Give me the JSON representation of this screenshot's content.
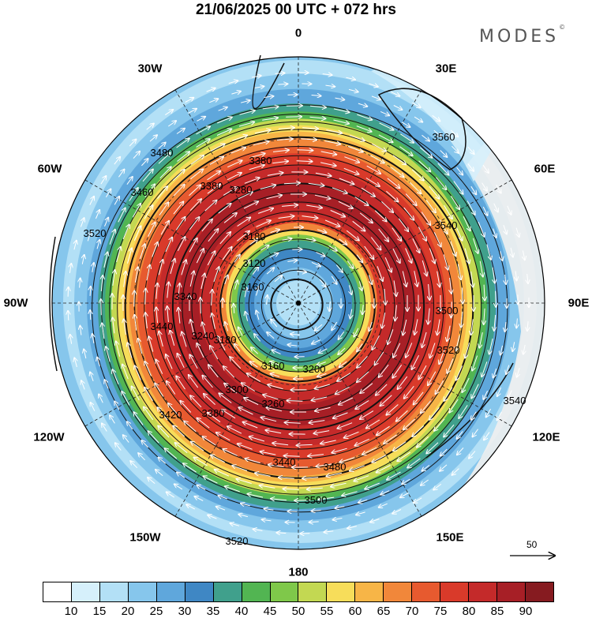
{
  "title": "21/06/2025  00 UTC  + 072 hrs",
  "brand": "MODES",
  "brand_mark": "©",
  "longitudes": {
    "top": "0",
    "top_left": "30W",
    "top_right": "30E",
    "upper_left": "60W",
    "upper_right": "60E",
    "left": "90W",
    "right": "90E",
    "lower_left": "120W",
    "lower_right": "120E",
    "bottom_left": "150W",
    "bottom_right": "150E",
    "bottom": "180"
  },
  "wind_scale": {
    "label": "50",
    "units": "reference arrow"
  },
  "colorbar": {
    "colors": [
      "#ffffff",
      "#d6f0fb",
      "#b3e0f6",
      "#86c6ec",
      "#5fa7dc",
      "#3f87c4",
      "#40a08c",
      "#52b552",
      "#7fc84a",
      "#c3d852",
      "#f7dd5a",
      "#f7b547",
      "#f1873a",
      "#e75a2f",
      "#d93a2a",
      "#c42a2a",
      "#a71f26",
      "#861b20"
    ],
    "ticks": [
      "10",
      "15",
      "20",
      "25",
      "30",
      "35",
      "40",
      "45",
      "50",
      "55",
      "60",
      "65",
      "70",
      "75",
      "80",
      "85",
      "90"
    ]
  },
  "contour_labels": [
    "3520",
    "3480",
    "3460",
    "3380",
    "3380",
    "3280",
    "3180",
    "3160",
    "3160",
    "3200",
    "3260",
    "3300",
    "3380",
    "3420",
    "3440",
    "3480",
    "3500",
    "3520",
    "3540",
    "3560",
    "3540",
    "3520",
    "3500",
    "3440",
    "3340",
    "3240",
    "3180",
    "3120"
  ]
}
